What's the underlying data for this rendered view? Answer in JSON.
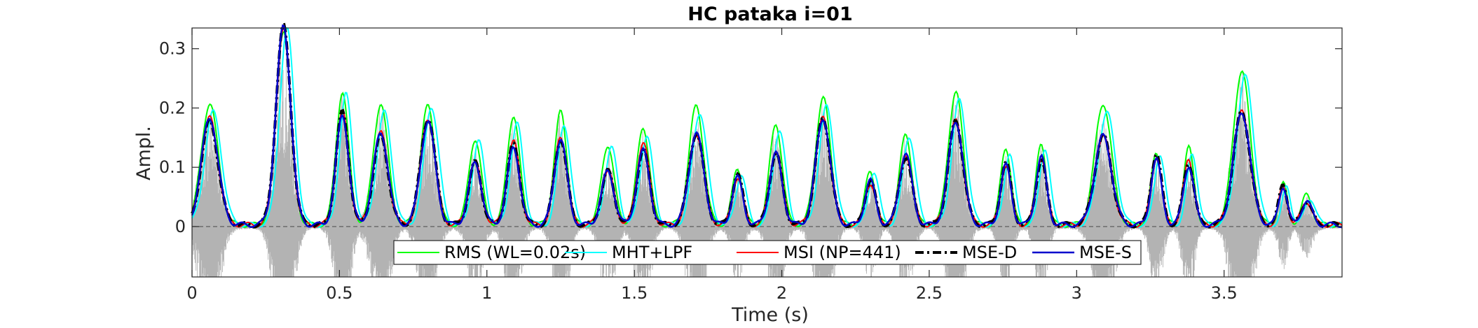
{
  "chart_data": {
    "type": "line",
    "title": "HC pataka i=01",
    "xlabel": "Time (s)",
    "ylabel": "Ampl.",
    "xlim": [
      0,
      3.9
    ],
    "ylim": [
      -0.085,
      0.335
    ],
    "x_ticks": [
      0,
      0.5,
      1,
      1.5,
      2,
      2.5,
      3,
      3.5
    ],
    "x_tick_labels": [
      "0",
      "0.5",
      "1",
      "1.5",
      "2",
      "2.5",
      "3",
      "3.5"
    ],
    "y_ticks": [
      0,
      0.1,
      0.2,
      0.3
    ],
    "y_tick_labels": [
      "0",
      "0.1",
      "0.2",
      "0.3"
    ],
    "grid": false,
    "zero_line": "dashed",
    "legend_position": "bottom-center",
    "legend_orientation": "horizontal",
    "peaks": [
      {
        "t": 0.06,
        "rms": 0.205,
        "mht": 0.19,
        "msi": 0.18,
        "mse_d": 0.175,
        "mse_s": 0.18,
        "w": 0.04
      },
      {
        "t": 0.31,
        "rms": 0.33,
        "mht": 0.33,
        "msi": 0.33,
        "mse_d": 0.335,
        "mse_s": 0.335,
        "w": 0.035
      },
      {
        "t": 0.51,
        "rms": 0.225,
        "mht": 0.22,
        "msi": 0.19,
        "mse_d": 0.19,
        "mse_s": 0.185,
        "w": 0.03
      },
      {
        "t": 0.64,
        "rms": 0.205,
        "mht": 0.19,
        "msi": 0.155,
        "mse_d": 0.15,
        "mse_s": 0.155,
        "w": 0.035
      },
      {
        "t": 0.8,
        "rms": 0.2,
        "mht": 0.2,
        "msi": 0.18,
        "mse_d": 0.18,
        "mse_s": 0.175,
        "w": 0.035
      },
      {
        "t": 0.96,
        "rms": 0.145,
        "mht": 0.14,
        "msi": 0.105,
        "mse_d": 0.105,
        "mse_s": 0.105,
        "w": 0.03
      },
      {
        "t": 1.09,
        "rms": 0.185,
        "mht": 0.17,
        "msi": 0.14,
        "mse_d": 0.135,
        "mse_s": 0.13,
        "w": 0.03
      },
      {
        "t": 1.25,
        "rms": 0.19,
        "mht": 0.17,
        "msi": 0.15,
        "mse_d": 0.145,
        "mse_s": 0.145,
        "w": 0.03
      },
      {
        "t": 1.41,
        "rms": 0.135,
        "mht": 0.13,
        "msi": 0.09,
        "mse_d": 0.09,
        "mse_s": 0.09,
        "w": 0.03
      },
      {
        "t": 1.53,
        "rms": 0.165,
        "mht": 0.15,
        "msi": 0.14,
        "mse_d": 0.125,
        "mse_s": 0.125,
        "w": 0.03
      },
      {
        "t": 1.71,
        "rms": 0.2,
        "mht": 0.19,
        "msi": 0.155,
        "mse_d": 0.155,
        "mse_s": 0.155,
        "w": 0.035
      },
      {
        "t": 1.85,
        "rms": 0.095,
        "mht": 0.085,
        "msi": 0.08,
        "mse_d": 0.085,
        "mse_s": 0.08,
        "w": 0.025
      },
      {
        "t": 1.98,
        "rms": 0.17,
        "mht": 0.16,
        "msi": 0.125,
        "mse_d": 0.12,
        "mse_s": 0.12,
        "w": 0.03
      },
      {
        "t": 2.14,
        "rms": 0.215,
        "mht": 0.2,
        "msi": 0.18,
        "mse_d": 0.18,
        "mse_s": 0.18,
        "w": 0.035
      },
      {
        "t": 2.3,
        "rms": 0.09,
        "mht": 0.09,
        "msi": 0.07,
        "mse_d": 0.075,
        "mse_s": 0.075,
        "w": 0.025
      },
      {
        "t": 2.42,
        "rms": 0.15,
        "mht": 0.15,
        "msi": 0.12,
        "mse_d": 0.115,
        "mse_s": 0.12,
        "w": 0.03
      },
      {
        "t": 2.59,
        "rms": 0.225,
        "mht": 0.21,
        "msi": 0.175,
        "mse_d": 0.175,
        "mse_s": 0.175,
        "w": 0.035
      },
      {
        "t": 2.76,
        "rms": 0.13,
        "mht": 0.12,
        "msi": 0.1,
        "mse_d": 0.105,
        "mse_s": 0.1,
        "w": 0.025
      },
      {
        "t": 2.88,
        "rms": 0.135,
        "mht": 0.13,
        "msi": 0.115,
        "mse_d": 0.11,
        "mse_s": 0.115,
        "w": 0.025
      },
      {
        "t": 3.09,
        "rms": 0.205,
        "mht": 0.19,
        "msi": 0.15,
        "mse_d": 0.15,
        "mse_s": 0.15,
        "w": 0.04
      },
      {
        "t": 3.27,
        "rms": 0.12,
        "mht": 0.12,
        "msi": 0.115,
        "mse_d": 0.12,
        "mse_s": 0.11,
        "w": 0.025
      },
      {
        "t": 3.38,
        "rms": 0.13,
        "mht": 0.12,
        "msi": 0.11,
        "mse_d": 0.105,
        "mse_s": 0.1,
        "w": 0.025
      },
      {
        "t": 3.56,
        "rms": 0.26,
        "mht": 0.25,
        "msi": 0.19,
        "mse_d": 0.19,
        "mse_s": 0.19,
        "w": 0.04
      },
      {
        "t": 3.7,
        "rms": 0.07,
        "mht": 0.065,
        "msi": 0.065,
        "mse_d": 0.07,
        "mse_s": 0.065,
        "w": 0.02
      },
      {
        "t": 3.78,
        "rms": 0.05,
        "mht": 0.045,
        "msi": 0.04,
        "mse_d": 0.04,
        "mse_s": 0.04,
        "w": 0.025
      }
    ],
    "series": [
      {
        "name": "RMS (WL=0.02s)",
        "key": "rms",
        "color": "#00ff00",
        "style": "solid",
        "width": 2,
        "shift": 0
      },
      {
        "name": "MHT+LPF",
        "key": "mht",
        "color": "#00ffff",
        "style": "solid",
        "width": 2,
        "shift": 0.012
      },
      {
        "name": "MSI (NP=441)",
        "key": "msi",
        "color": "#ff0000",
        "style": "solid",
        "width": 2,
        "shift": 0
      },
      {
        "name": "MSE-D",
        "key": "mse_d",
        "color": "#000000",
        "style": "dashdot",
        "width": 4,
        "shift": 0
      },
      {
        "name": "MSE-S",
        "key": "mse_s",
        "color": "#0000cd",
        "style": "solid",
        "width": 2.5,
        "shift": 0
      }
    ],
    "colors": {
      "waveform": "#b3b3b3",
      "axes": "#262626"
    }
  }
}
